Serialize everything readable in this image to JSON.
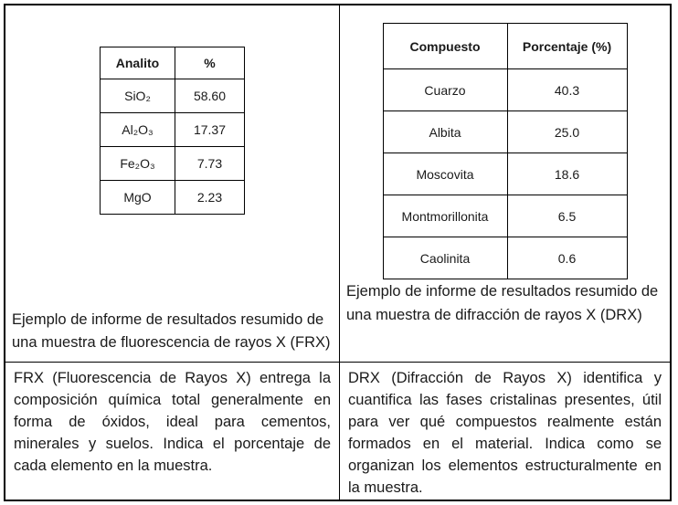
{
  "colors": {
    "background": "#ffffff",
    "border": "#000000",
    "text": "#1a1a1a"
  },
  "left_panel": {
    "table": {
      "headers": [
        "Analito",
        "%"
      ],
      "rows": [
        [
          "SiO₂",
          "58.60"
        ],
        [
          "Al₂O₃",
          "17.37"
        ],
        [
          "Fe₂O₃",
          "7.73"
        ],
        [
          "MgO",
          "2.23"
        ]
      ]
    },
    "caption": "Ejemplo de informe de resultados resumido de una muestra de fluorescencia de rayos X (FRX)",
    "description": "FRX (Fluorescencia de Rayos X) entrega la composición química total generalmente en forma de óxidos, ideal para cementos, minerales y suelos. Indica el porcentaje de cada elemento en la muestra."
  },
  "right_panel": {
    "table": {
      "headers": [
        "Compuesto",
        "Porcentaje (%)"
      ],
      "rows": [
        [
          "Cuarzo",
          "40.3"
        ],
        [
          "Albita",
          "25.0"
        ],
        [
          "Moscovita",
          "18.6"
        ],
        [
          "Montmorillonita",
          "6.5"
        ],
        [
          "Caolinita",
          "0.6"
        ]
      ]
    },
    "caption": "Ejemplo de informe de resultados resumido de una muestra de difracción de rayos X (DRX)",
    "description": "DRX (Difracción de Rayos X) identifica y cuantifica las fases cristalinas presentes, útil para ver qué compuestos realmente están formados en el material. Indica como se organizan los elementos estructuralmente en la muestra."
  }
}
